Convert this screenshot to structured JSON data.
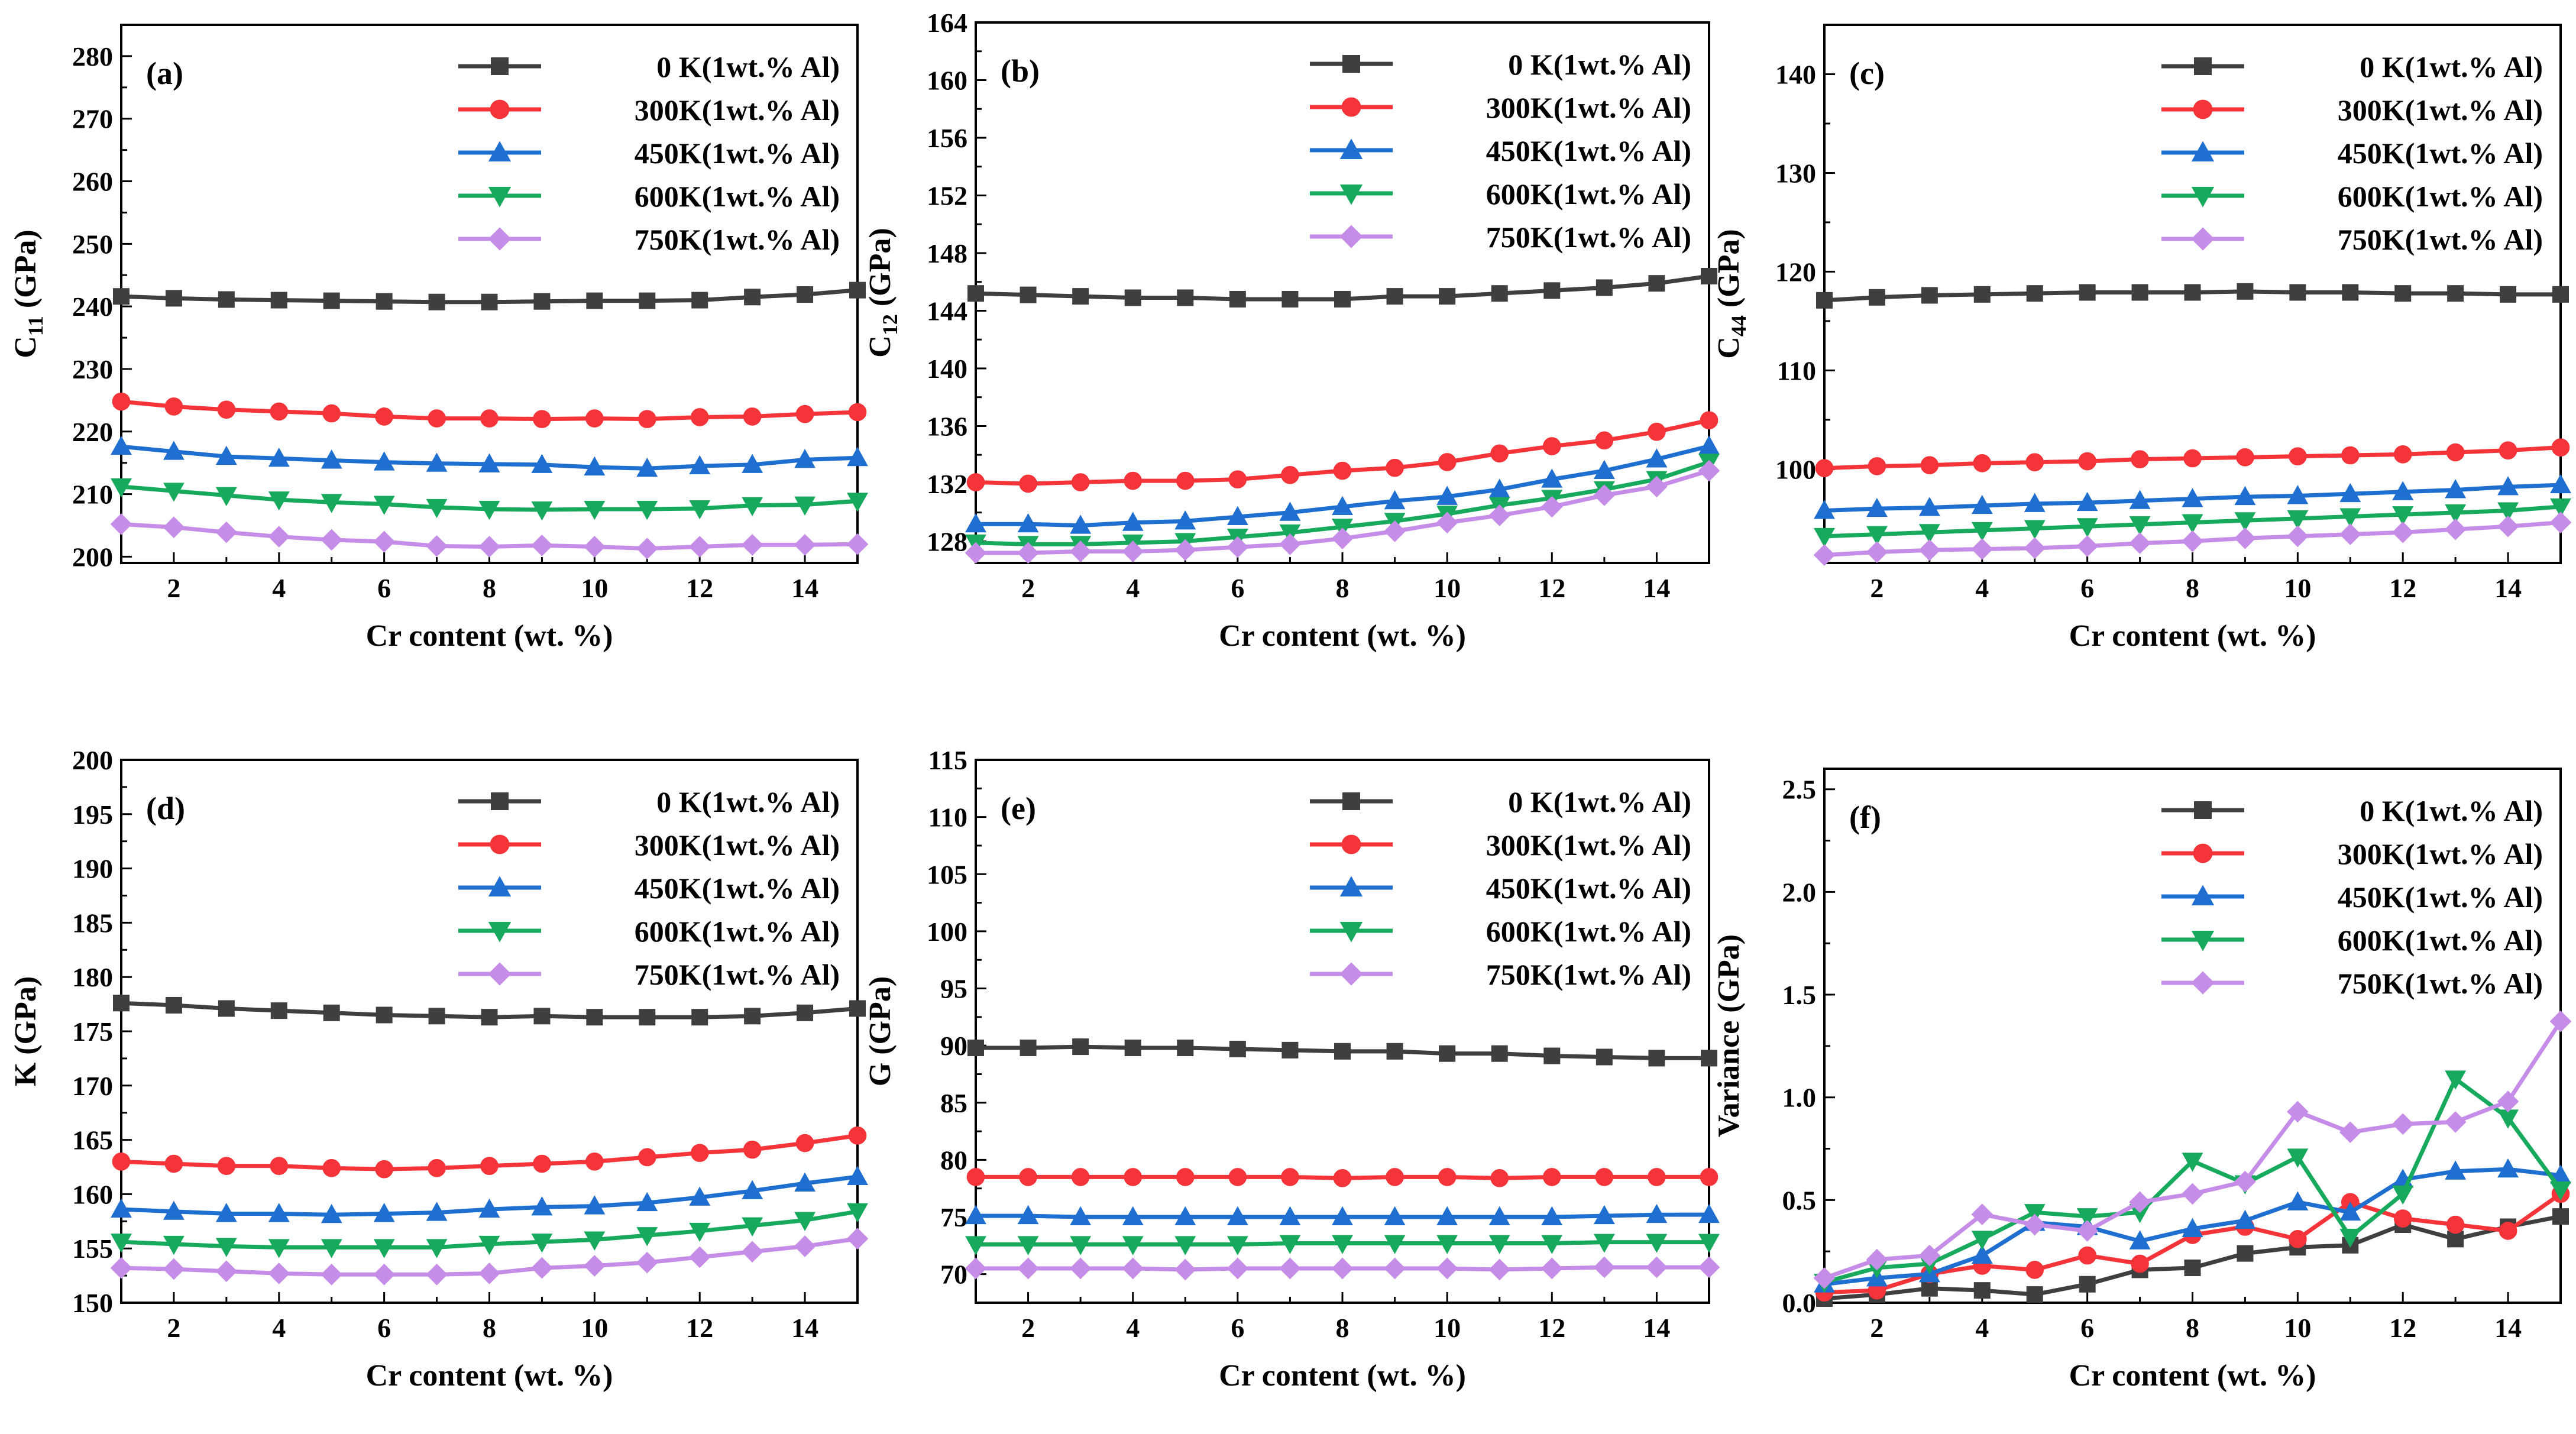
{
  "figure": {
    "series_names": [
      "0  K(1wt.% Al)",
      "300K(1wt.% Al)",
      "450K(1wt.% Al)",
      "600K(1wt.% Al)",
      "750K(1wt.% Al)"
    ],
    "series_colors": [
      "#3f3f3f",
      "#f5343a",
      "#1f6fd0",
      "#17a95c",
      "#c68de8"
    ],
    "series_markers": [
      "square",
      "circle",
      "triangle-up",
      "triangle-down",
      "diamond"
    ]
  },
  "chart_data": [
    {
      "type": "line",
      "panel_label": "(a)",
      "xlabel": "Cr content (wt. %)",
      "ylabel": "C11 (GPa)",
      "ylabel_main": "C",
      "ylabel_sub": "11",
      "ylabel_unit": " (GPa)",
      "xlim": [
        1,
        15
      ],
      "ylim": [
        199,
        285
      ],
      "xticks": [
        "2",
        "4",
        "6",
        "8",
        "10",
        "12",
        "14"
      ],
      "yticks": [
        "200",
        "210",
        "220",
        "230",
        "240",
        "250",
        "260",
        "270",
        "280"
      ],
      "legend": "top-right",
      "x": [
        1,
        2,
        3,
        4,
        5,
        6,
        7,
        8,
        9,
        10,
        11,
        12,
        13,
        14,
        15
      ],
      "series": [
        {
          "name": "0  K(1wt.% Al)",
          "values": [
            241.6,
            241.3,
            241.1,
            241.0,
            240.9,
            240.8,
            240.7,
            240.7,
            240.8,
            240.9,
            240.9,
            241.0,
            241.5,
            241.9,
            242.6
          ]
        },
        {
          "name": "300K(1wt.% Al)",
          "values": [
            224.8,
            224.0,
            223.5,
            223.2,
            222.9,
            222.4,
            222.1,
            222.1,
            222.0,
            222.1,
            222.0,
            222.3,
            222.4,
            222.8,
            223.1
          ]
        },
        {
          "name": "450K(1wt.% Al)",
          "values": [
            217.6,
            216.8,
            216.0,
            215.7,
            215.4,
            215.1,
            214.9,
            214.8,
            214.7,
            214.3,
            214.1,
            214.5,
            214.7,
            215.5,
            215.8
          ]
        },
        {
          "name": "600K(1wt.% Al)",
          "values": [
            211.2,
            210.5,
            209.8,
            209.1,
            208.7,
            208.4,
            207.9,
            207.6,
            207.5,
            207.6,
            207.6,
            207.7,
            208.2,
            208.3,
            208.9
          ]
        },
        {
          "name": "750K(1wt.% Al)",
          "values": [
            205.2,
            204.7,
            203.9,
            203.2,
            202.7,
            202.4,
            201.7,
            201.6,
            201.8,
            201.6,
            201.3,
            201.6,
            201.9,
            201.9,
            202.0
          ]
        }
      ]
    },
    {
      "type": "line",
      "panel_label": "(b)",
      "xlabel": "Cr content (wt. %)",
      "ylabel": "C12 (GPa)",
      "ylabel_main": "C",
      "ylabel_sub": "12",
      "ylabel_unit": " (GPa)",
      "xlim": [
        1,
        15
      ],
      "ylim": [
        126.5,
        164
      ],
      "xticks": [
        "2",
        "4",
        "6",
        "8",
        "10",
        "12",
        "14"
      ],
      "yticks": [
        "128",
        "132",
        "136",
        "140",
        "144",
        "148",
        "152",
        "156",
        "160",
        "164"
      ],
      "legend": "top-right",
      "x": [
        1,
        2,
        3,
        4,
        5,
        6,
        7,
        8,
        9,
        10,
        11,
        12,
        13,
        14,
        15
      ],
      "series": [
        {
          "name": "0  K(1wt.% Al)",
          "values": [
            145.2,
            145.1,
            145.0,
            144.9,
            144.9,
            144.8,
            144.8,
            144.8,
            145.0,
            145.0,
            145.2,
            145.4,
            145.6,
            145.9,
            146.4
          ]
        },
        {
          "name": "300K(1wt.% Al)",
          "values": [
            132.1,
            132.0,
            132.1,
            132.2,
            132.2,
            132.3,
            132.6,
            132.9,
            133.1,
            133.5,
            134.1,
            134.6,
            135.0,
            135.6,
            136.4
          ]
        },
        {
          "name": "450K(1wt.% Al)",
          "values": [
            129.2,
            129.2,
            129.1,
            129.3,
            129.4,
            129.7,
            130.0,
            130.4,
            130.8,
            131.1,
            131.6,
            132.3,
            132.9,
            133.7,
            134.6
          ]
        },
        {
          "name": "600K(1wt.% Al)",
          "values": [
            127.9,
            127.8,
            127.8,
            127.9,
            128.0,
            128.3,
            128.6,
            129.0,
            129.4,
            129.9,
            130.5,
            131.0,
            131.6,
            132.3,
            133.5
          ]
        },
        {
          "name": "750K(1wt.% Al)",
          "values": [
            127.2,
            127.2,
            127.3,
            127.3,
            127.4,
            127.6,
            127.8,
            128.2,
            128.7,
            129.3,
            129.8,
            130.4,
            131.2,
            131.8,
            132.9
          ]
        }
      ]
    },
    {
      "type": "line",
      "panel_label": "(c)",
      "xlabel": "Cr content (wt. %)",
      "ylabel": "C44 (GPa)",
      "ylabel_main": "C",
      "ylabel_sub": "44",
      "ylabel_unit": " (GPa)",
      "xlim": [
        1,
        15
      ],
      "ylim": [
        90.5,
        145
      ],
      "xticks": [
        "2",
        "4",
        "6",
        "8",
        "10",
        "12",
        "14"
      ],
      "yticks": [
        "100",
        "110",
        "120",
        "130",
        "140"
      ],
      "legend": "top-right",
      "x": [
        1,
        2,
        3,
        4,
        5,
        6,
        7,
        8,
        9,
        10,
        11,
        12,
        13,
        14,
        15
      ],
      "series": [
        {
          "name": "0  K(1wt.% Al)",
          "values": [
            117.1,
            117.4,
            117.6,
            117.7,
            117.8,
            117.9,
            117.9,
            117.9,
            118.0,
            117.9,
            117.9,
            117.8,
            117.8,
            117.7,
            117.7
          ]
        },
        {
          "name": "300K(1wt.% Al)",
          "values": [
            100.1,
            100.3,
            100.4,
            100.6,
            100.7,
            100.8,
            101.0,
            101.1,
            101.2,
            101.3,
            101.4,
            101.5,
            101.7,
            101.9,
            102.2
          ]
        },
        {
          "name": "450K(1wt.% Al)",
          "values": [
            95.8,
            96.0,
            96.1,
            96.3,
            96.5,
            96.6,
            96.8,
            97.0,
            97.2,
            97.3,
            97.5,
            97.7,
            97.9,
            98.2,
            98.4
          ]
        },
        {
          "name": "600K(1wt.% Al)",
          "values": [
            93.2,
            93.4,
            93.6,
            93.8,
            94.0,
            94.2,
            94.4,
            94.6,
            94.8,
            95.0,
            95.2,
            95.4,
            95.6,
            95.8,
            96.2
          ]
        },
        {
          "name": "750K(1wt.% Al)",
          "values": [
            91.3,
            91.6,
            91.8,
            91.9,
            92.0,
            92.2,
            92.5,
            92.7,
            93.0,
            93.2,
            93.4,
            93.6,
            93.9,
            94.2,
            94.6
          ]
        }
      ]
    },
    {
      "type": "line",
      "panel_label": "(d)",
      "xlabel": "Cr content (wt. %)",
      "ylabel": "K (GPa)",
      "xlim": [
        1,
        15
      ],
      "ylim": [
        150,
        200
      ],
      "xticks": [
        "2",
        "4",
        "6",
        "8",
        "10",
        "12",
        "14"
      ],
      "yticks": [
        "150",
        "155",
        "160",
        "165",
        "170",
        "175",
        "180",
        "185",
        "190",
        "195",
        "200"
      ],
      "legend": "top-right",
      "x": [
        1,
        2,
        3,
        4,
        5,
        6,
        7,
        8,
        9,
        10,
        11,
        12,
        13,
        14,
        15
      ],
      "series": [
        {
          "name": "0  K(1wt.% Al)",
          "values": [
            177.6,
            177.4,
            177.1,
            176.9,
            176.7,
            176.5,
            176.4,
            176.3,
            176.4,
            176.3,
            176.3,
            176.3,
            176.4,
            176.7,
            177.1
          ]
        },
        {
          "name": "300K(1wt.% Al)",
          "values": [
            163.0,
            162.8,
            162.6,
            162.6,
            162.4,
            162.3,
            162.4,
            162.6,
            162.8,
            163.0,
            163.4,
            163.8,
            164.1,
            164.7,
            165.4
          ]
        },
        {
          "name": "450K(1wt.% Al)",
          "values": [
            158.6,
            158.4,
            158.2,
            158.2,
            158.1,
            158.2,
            158.3,
            158.6,
            158.8,
            158.9,
            159.2,
            159.7,
            160.3,
            161.0,
            161.6
          ]
        },
        {
          "name": "600K(1wt.% Al)",
          "values": [
            155.6,
            155.4,
            155.2,
            155.1,
            155.1,
            155.1,
            155.1,
            155.4,
            155.6,
            155.8,
            156.2,
            156.6,
            157.1,
            157.6,
            158.4
          ]
        },
        {
          "name": "750K(1wt.% Al)",
          "values": [
            153.2,
            153.1,
            152.9,
            152.7,
            152.6,
            152.6,
            152.6,
            152.7,
            153.2,
            153.4,
            153.7,
            154.2,
            154.7,
            155.2,
            155.9
          ]
        }
      ]
    },
    {
      "type": "line",
      "panel_label": "(e)",
      "xlabel": "Cr content (wt. %)",
      "ylabel": "G (GPa)",
      "xlim": [
        1,
        15
      ],
      "ylim": [
        67.5,
        115
      ],
      "xticks": [
        "2",
        "4",
        "6",
        "8",
        "10",
        "12",
        "14"
      ],
      "yticks": [
        "70",
        "75",
        "80",
        "85",
        "90",
        "95",
        "100",
        "105",
        "110",
        "115"
      ],
      "legend": "top-right",
      "x": [
        1,
        2,
        3,
        4,
        5,
        6,
        7,
        8,
        9,
        10,
        11,
        12,
        13,
        14,
        15
      ],
      "series": [
        {
          "name": "0  K(1wt.% Al)",
          "values": [
            89.8,
            89.8,
            89.9,
            89.8,
            89.8,
            89.7,
            89.6,
            89.5,
            89.5,
            89.3,
            89.3,
            89.1,
            89.0,
            88.9,
            88.9
          ]
        },
        {
          "name": "300K(1wt.% Al)",
          "values": [
            78.5,
            78.5,
            78.5,
            78.5,
            78.5,
            78.5,
            78.5,
            78.4,
            78.5,
            78.5,
            78.4,
            78.5,
            78.5,
            78.5,
            78.5
          ]
        },
        {
          "name": "450K(1wt.% Al)",
          "values": [
            75.1,
            75.1,
            75.0,
            75.0,
            75.0,
            75.0,
            75.0,
            75.0,
            75.0,
            75.0,
            75.0,
            75.0,
            75.1,
            75.2,
            75.2
          ]
        },
        {
          "name": "600K(1wt.% Al)",
          "values": [
            72.6,
            72.6,
            72.6,
            72.6,
            72.6,
            72.6,
            72.7,
            72.7,
            72.7,
            72.7,
            72.7,
            72.7,
            72.8,
            72.8,
            72.8
          ]
        },
        {
          "name": "750K(1wt.% Al)",
          "values": [
            70.5,
            70.5,
            70.5,
            70.5,
            70.4,
            70.5,
            70.5,
            70.5,
            70.5,
            70.5,
            70.4,
            70.5,
            70.6,
            70.6,
            70.6
          ]
        }
      ]
    },
    {
      "type": "line",
      "panel_label": "(f)",
      "xlabel": "Cr content (wt. %)",
      "ylabel": "Variance (GPa)",
      "xlim": [
        1,
        15
      ],
      "ylim": [
        0,
        2.6
      ],
      "xticks": [
        "2",
        "4",
        "6",
        "8",
        "10",
        "12",
        "14"
      ],
      "yticks": [
        "0.0",
        "0.5",
        "1.0",
        "1.5",
        "2.0",
        "2.5"
      ],
      "legend": "top-right",
      "x": [
        1,
        2,
        3,
        4,
        5,
        6,
        7,
        8,
        9,
        10,
        11,
        12,
        13,
        14,
        15
      ],
      "series": [
        {
          "name": "0  K(1wt.% Al)",
          "values": [
            0.02,
            0.04,
            0.07,
            0.06,
            0.04,
            0.09,
            0.16,
            0.17,
            0.24,
            0.27,
            0.28,
            0.38,
            0.31,
            0.37,
            0.42
          ]
        },
        {
          "name": "300K(1wt.% Al)",
          "values": [
            0.05,
            0.06,
            0.14,
            0.18,
            0.16,
            0.23,
            0.19,
            0.33,
            0.37,
            0.31,
            0.49,
            0.41,
            0.38,
            0.35,
            0.53
          ]
        },
        {
          "name": "450K(1wt.% Al)",
          "values": [
            0.09,
            0.12,
            0.14,
            0.23,
            0.39,
            0.37,
            0.3,
            0.36,
            0.4,
            0.49,
            0.44,
            0.6,
            0.64,
            0.65,
            0.62
          ]
        },
        {
          "name": "600K(1wt.% Al)",
          "values": [
            0.1,
            0.17,
            0.19,
            0.31,
            0.44,
            0.42,
            0.44,
            0.69,
            0.58,
            0.71,
            0.32,
            0.53,
            1.09,
            0.9,
            0.55
          ]
        },
        {
          "name": "750K(1wt.% Al)",
          "values": [
            0.12,
            0.21,
            0.23,
            0.43,
            0.38,
            0.35,
            0.49,
            0.53,
            0.59,
            0.93,
            0.83,
            0.87,
            0.88,
            0.98,
            1.37
          ]
        }
      ]
    }
  ]
}
